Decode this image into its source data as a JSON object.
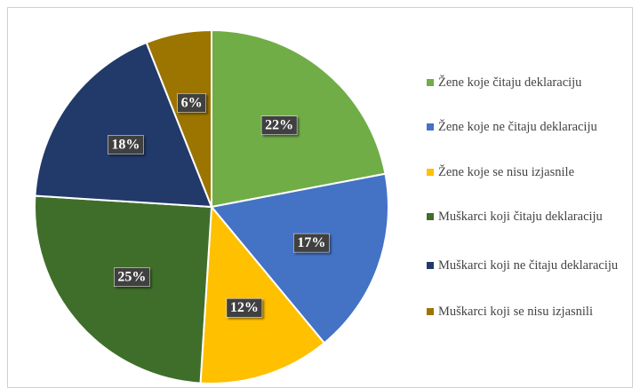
{
  "chart_data": {
    "type": "pie",
    "categories": [
      "Žene koje čitaju deklaraciju",
      "Žene koje ne čitaju deklaraciju",
      "Žene koje se nisu izjasnile",
      "Muškarci koji čitaju deklaraciju",
      "Muškarci koji ne čitaju deklaraciju",
      "Muškarci koji se nisu izjasnili"
    ],
    "values": [
      22,
      17,
      12,
      25,
      18,
      6
    ],
    "value_labels": [
      "22%",
      "17%",
      "12%",
      "25%",
      "18%",
      "6%"
    ],
    "colors": [
      "#70ad47",
      "#4472c4",
      "#ffc000",
      "#3f6e2a",
      "#223a6a",
      "#9c7400"
    ],
    "legend": "right"
  }
}
